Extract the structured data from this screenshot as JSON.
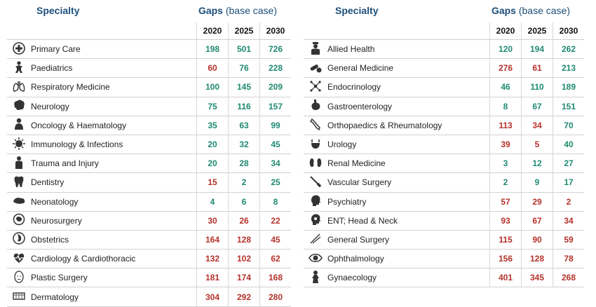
{
  "header": {
    "specialty_label": "Specialty",
    "gaps_label": "Gaps",
    "base_case_label": "(base case)"
  },
  "years": [
    "2020",
    "2025",
    "2030"
  ],
  "colors": {
    "green": "#1f8a72",
    "red": "#b5322b",
    "heading": "#1d4f7a"
  },
  "left_rows": [
    {
      "icon": "plus-circle-icon",
      "name": "Primary Care",
      "values": [
        198,
        501,
        726
      ],
      "colors": [
        "green",
        "green",
        "green"
      ]
    },
    {
      "icon": "baby-icon",
      "name": "Paediatrics",
      "values": [
        60,
        76,
        228
      ],
      "colors": [
        "red",
        "green",
        "green"
      ]
    },
    {
      "icon": "lungs-icon",
      "name": "Respiratory Medicine",
      "values": [
        100,
        145,
        209
      ],
      "colors": [
        "green",
        "green",
        "green"
      ]
    },
    {
      "icon": "brain-icon",
      "name": "Neurology",
      "values": [
        75,
        116,
        157
      ],
      "colors": [
        "green",
        "green",
        "green"
      ]
    },
    {
      "icon": "person-icon",
      "name": "Oncology & Haematology",
      "values": [
        35,
        63,
        99
      ],
      "colors": [
        "green",
        "green",
        "green"
      ]
    },
    {
      "icon": "virus-icon",
      "name": "Immunology & Infections",
      "values": [
        20,
        32,
        45
      ],
      "colors": [
        "green",
        "green",
        "green"
      ]
    },
    {
      "icon": "injured-person-icon",
      "name": "Trauma and Injury",
      "values": [
        20,
        28,
        34
      ],
      "colors": [
        "green",
        "green",
        "green"
      ]
    },
    {
      "icon": "tooth-icon",
      "name": "Dentistry",
      "values": [
        15,
        2,
        25
      ],
      "colors": [
        "red",
        "green",
        "green"
      ]
    },
    {
      "icon": "newborn-icon",
      "name": "Neonatology",
      "values": [
        4,
        6,
        8
      ],
      "colors": [
        "green",
        "green",
        "green"
      ]
    },
    {
      "icon": "head-brain-icon",
      "name": "Neurosurgery",
      "values": [
        30,
        26,
        22
      ],
      "colors": [
        "red",
        "red",
        "red"
      ]
    },
    {
      "icon": "pregnancy-icon",
      "name": "Obstetrics",
      "values": [
        164,
        128,
        45
      ],
      "colors": [
        "red",
        "red",
        "red"
      ]
    },
    {
      "icon": "heart-pulse-icon",
      "name": "Cardiology & Cardiothoracic",
      "values": [
        132,
        102,
        62
      ],
      "colors": [
        "red",
        "red",
        "red"
      ]
    },
    {
      "icon": "face-icon",
      "name": "Plastic Surgery",
      "values": [
        181,
        174,
        168
      ],
      "colors": [
        "red",
        "red",
        "red"
      ]
    },
    {
      "icon": "skin-icon",
      "name": "Dermatology",
      "values": [
        304,
        292,
        280
      ],
      "colors": [
        "red",
        "red",
        "red"
      ]
    }
  ],
  "right_rows": [
    {
      "icon": "doctor-icon",
      "name": "Allied Health",
      "values": [
        120,
        194,
        262
      ],
      "colors": [
        "green",
        "green",
        "green"
      ]
    },
    {
      "icon": "pills-icon",
      "name": "General Medicine",
      "values": [
        276,
        61,
        213
      ],
      "colors": [
        "red",
        "red",
        "green"
      ]
    },
    {
      "icon": "molecule-icon",
      "name": "Endocrinology",
      "values": [
        46,
        110,
        189
      ],
      "colors": [
        "green",
        "green",
        "green"
      ]
    },
    {
      "icon": "stomach-icon",
      "name": "Gastroenterology",
      "values": [
        8,
        67,
        151
      ],
      "colors": [
        "green",
        "green",
        "green"
      ]
    },
    {
      "icon": "bone-icon",
      "name": "Orthopaedics & Rheumatology",
      "values": [
        113,
        34,
        70
      ],
      "colors": [
        "red",
        "red",
        "green"
      ]
    },
    {
      "icon": "bladder-icon",
      "name": "Urology",
      "values": [
        39,
        5,
        40
      ],
      "colors": [
        "red",
        "red",
        "green"
      ]
    },
    {
      "icon": "kidneys-icon",
      "name": "Renal Medicine",
      "values": [
        3,
        12,
        27
      ],
      "colors": [
        "green",
        "green",
        "green"
      ]
    },
    {
      "icon": "scalpel-icon",
      "name": "Vascular Surgery",
      "values": [
        2,
        9,
        17
      ],
      "colors": [
        "green",
        "green",
        "green"
      ]
    },
    {
      "icon": "head-profile-icon",
      "name": "Psychiatry",
      "values": [
        57,
        29,
        2
      ],
      "colors": [
        "red",
        "red",
        "red"
      ]
    },
    {
      "icon": "ear-icon",
      "name": "ENT; Head & Neck",
      "values": [
        93,
        67,
        34
      ],
      "colors": [
        "red",
        "red",
        "red"
      ]
    },
    {
      "icon": "surgical-tools-icon",
      "name": "General Surgery",
      "values": [
        115,
        90,
        59
      ],
      "colors": [
        "red",
        "red",
        "red"
      ]
    },
    {
      "icon": "eye-icon",
      "name": "Ophthalmology",
      "values": [
        156,
        128,
        78
      ],
      "colors": [
        "red",
        "red",
        "red"
      ]
    },
    {
      "icon": "woman-icon",
      "name": "Gynaecology",
      "values": [
        401,
        345,
        268
      ],
      "colors": [
        "red",
        "red",
        "red"
      ]
    }
  ]
}
